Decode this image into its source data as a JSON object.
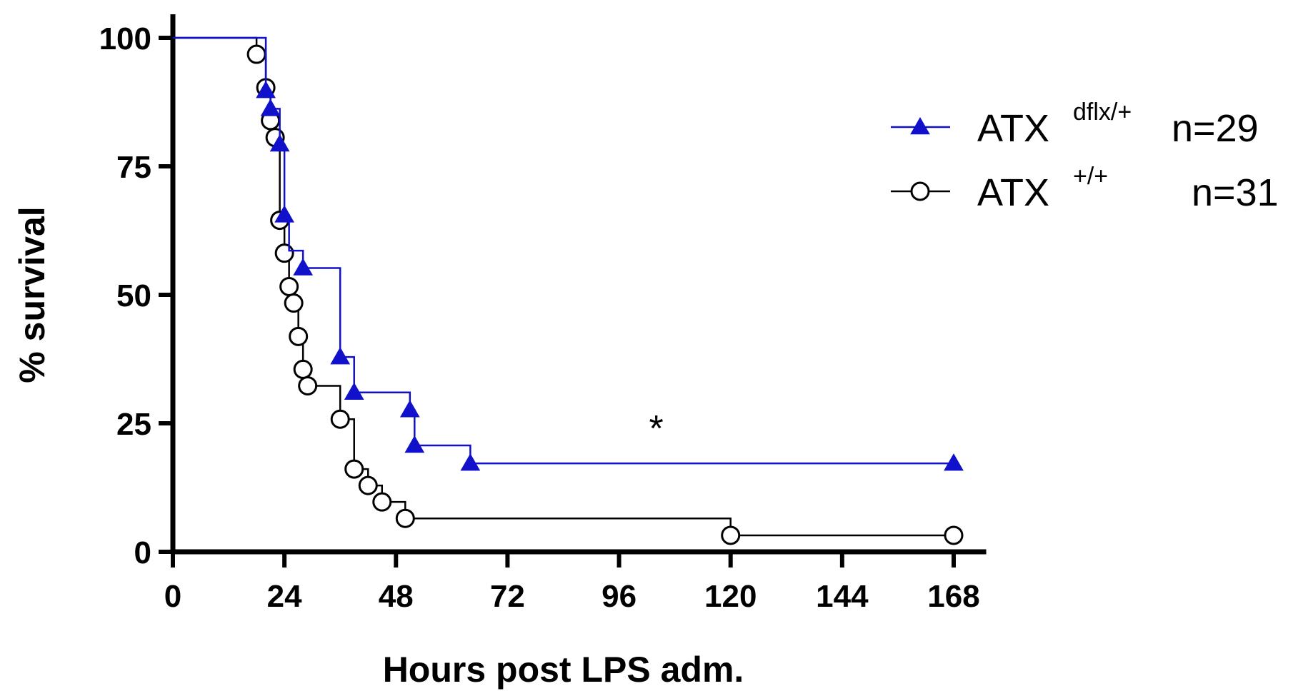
{
  "chart_data": {
    "type": "line",
    "subtype": "kaplan-meier step",
    "title": "",
    "xlabel": "Hours post LPS adm.",
    "ylabel": "% survival",
    "xlim": [
      0,
      175
    ],
    "ylim": [
      0,
      100
    ],
    "xticks": [
      0,
      24,
      48,
      72,
      96,
      120,
      144,
      168
    ],
    "yticks": [
      0,
      25,
      50,
      75,
      100
    ],
    "grid": false,
    "legend_position": "top-right",
    "annotation": "*",
    "annotation_pos": [
      104,
      24
    ],
    "series": [
      {
        "name": "ATX",
        "superscript": "dflx/+",
        "n_label": "n=29",
        "color": "#1111cc",
        "marker": "filled-triangle",
        "steps": [
          [
            0,
            100
          ],
          [
            20,
            89.7
          ],
          [
            21,
            86.2
          ],
          [
            23,
            79.3
          ],
          [
            24,
            65.5
          ],
          [
            25,
            58.6
          ],
          [
            28,
            55.2
          ],
          [
            36,
            37.9
          ],
          [
            39,
            31.0
          ],
          [
            51,
            27.6
          ],
          [
            52,
            20.7
          ],
          [
            64,
            17.2
          ],
          [
            168,
            17.2
          ]
        ],
        "markers": [
          [
            20,
            89.7
          ],
          [
            21,
            86.2
          ],
          [
            23,
            79.3
          ],
          [
            24,
            65.5
          ],
          [
            28,
            55.2
          ],
          [
            36,
            37.9
          ],
          [
            39,
            31.0
          ],
          [
            51,
            27.6
          ],
          [
            52,
            20.7
          ],
          [
            64,
            17.2
          ],
          [
            168,
            17.2
          ]
        ]
      },
      {
        "name": "ATX",
        "superscript": "+/+",
        "n_label": "n=31",
        "color": "#000000",
        "marker": "open-circle",
        "steps": [
          [
            0,
            100
          ],
          [
            18,
            96.8
          ],
          [
            20,
            90.3
          ],
          [
            21,
            83.9
          ],
          [
            22,
            80.6
          ],
          [
            23,
            64.5
          ],
          [
            24,
            58.1
          ],
          [
            25,
            51.6
          ],
          [
            26,
            48.4
          ],
          [
            27,
            41.9
          ],
          [
            28,
            35.5
          ],
          [
            29,
            32.3
          ],
          [
            36,
            25.8
          ],
          [
            39,
            16.1
          ],
          [
            42,
            12.9
          ],
          [
            45,
            9.7
          ],
          [
            50,
            6.5
          ],
          [
            120,
            3.2
          ],
          [
            168,
            3.2
          ]
        ],
        "markers": [
          [
            18,
            96.8
          ],
          [
            20,
            90.3
          ],
          [
            21,
            83.9
          ],
          [
            22,
            80.6
          ],
          [
            23,
            64.5
          ],
          [
            24,
            58.1
          ],
          [
            25,
            51.6
          ],
          [
            26,
            48.4
          ],
          [
            27,
            41.9
          ],
          [
            28,
            35.5
          ],
          [
            29,
            32.3
          ],
          [
            36,
            25.8
          ],
          [
            39,
            16.1
          ],
          [
            42,
            12.9
          ],
          [
            45,
            9.7
          ],
          [
            50,
            6.5
          ],
          [
            120,
            3.2
          ],
          [
            168,
            3.2
          ]
        ]
      }
    ]
  }
}
